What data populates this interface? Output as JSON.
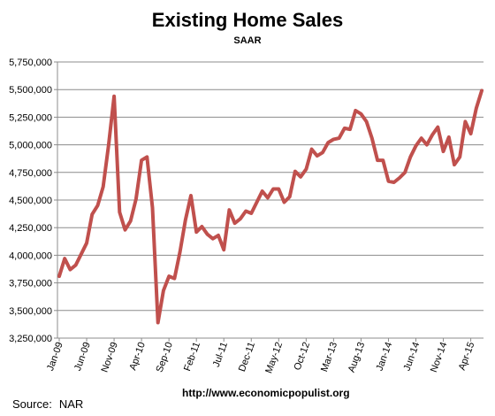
{
  "chart_data": {
    "type": "line",
    "title": "Existing Home Sales",
    "subtitle": "SAAR",
    "xlabel": "",
    "ylabel": "",
    "ylim": [
      3250000,
      5750000
    ],
    "y_ticks": [
      "3,250,000",
      "3,500,000",
      "3,750,000",
      "4,000,000",
      "4,250,000",
      "4,500,000",
      "4,750,000",
      "5,000,000",
      "5,250,000",
      "5,500,000",
      "5,750,000"
    ],
    "y_tick_values": [
      3250000,
      3500000,
      3750000,
      4000000,
      4250000,
      4500000,
      4750000,
      5000000,
      5250000,
      5500000,
      5750000
    ],
    "x_tick_labels": [
      {
        "label": "Jan-09",
        "index": 0
      },
      {
        "label": "Jun-09",
        "index": 5
      },
      {
        "label": "Nov-09",
        "index": 10
      },
      {
        "label": "Apr-10",
        "index": 15
      },
      {
        "label": "Sep-10",
        "index": 20
      },
      {
        "label": "Feb-11",
        "index": 25
      },
      {
        "label": "Jul-11",
        "index": 30
      },
      {
        "label": "Dec-11",
        "index": 35
      },
      {
        "label": "May-12",
        "index": 40
      },
      {
        "label": "Oct-12",
        "index": 45
      },
      {
        "label": "Mar-13",
        "index": 50
      },
      {
        "label": "Aug-13",
        "index": 55
      },
      {
        "label": "Jan-14",
        "index": 60
      },
      {
        "label": "Jun-14",
        "index": 65
      },
      {
        "label": "Nov-14",
        "index": 70
      },
      {
        "label": "Apr-15",
        "index": 75
      }
    ],
    "grid": true,
    "legend": "none",
    "line_color": "#c0504d",
    "series": [
      {
        "values": [
          3810000,
          3970000,
          3870000,
          3910000,
          4010000,
          4110000,
          4370000,
          4450000,
          4620000,
          5000000,
          5440000,
          4390000,
          4230000,
          4310000,
          4510000,
          4860000,
          4890000,
          4430000,
          3390000,
          3680000,
          3810000,
          3790000,
          4030000,
          4320000,
          4540000,
          4210000,
          4260000,
          4190000,
          4150000,
          4180000,
          4050000,
          4410000,
          4290000,
          4330000,
          4400000,
          4380000,
          4480000,
          4580000,
          4520000,
          4600000,
          4600000,
          4480000,
          4530000,
          4760000,
          4710000,
          4780000,
          4960000,
          4900000,
          4930000,
          5020000,
          5050000,
          5060000,
          5150000,
          5140000,
          5310000,
          5280000,
          5210000,
          5060000,
          4860000,
          4860000,
          4670000,
          4660000,
          4700000,
          4750000,
          4890000,
          4990000,
          5060000,
          5000000,
          5090000,
          5160000,
          4940000,
          5070000,
          4820000,
          4890000,
          5210000,
          5100000,
          5330000,
          5490000
        ]
      }
    ]
  },
  "footer": {
    "source_label": "Source:",
    "source_value": "NAR",
    "website": "http://www.economicpopulist.org"
  }
}
